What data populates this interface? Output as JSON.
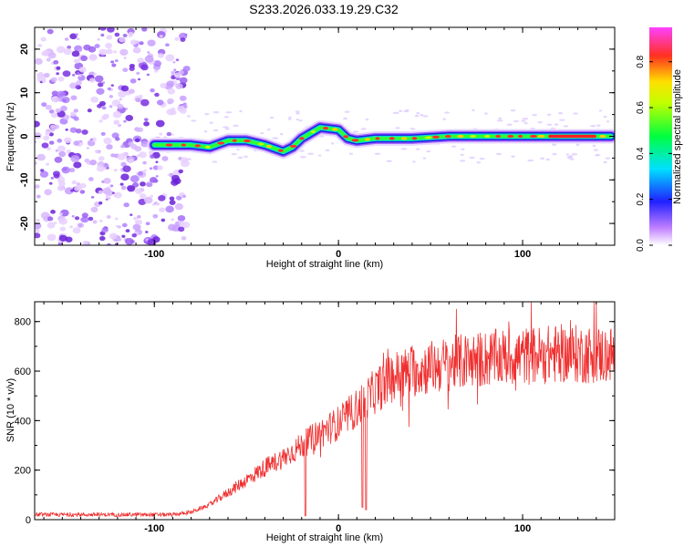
{
  "page": {
    "title": "S233.2026.033.19.29.C32"
  },
  "chart_data": [
    {
      "type": "heatmap",
      "name": "spectrogram",
      "xlabel": "Height of straight line (km)",
      "ylabel": "Frequency (Hz)",
      "xlim": [
        -165,
        150
      ],
      "ylim": [
        -25,
        25
      ],
      "xticks": [
        "-100",
        "0",
        "100"
      ],
      "yticks": [
        "-20",
        "-10",
        "0",
        "10",
        "20"
      ],
      "colorbar": {
        "label": "Normalized spectral amplitude",
        "range": [
          0,
          0.95
        ],
        "ticks": [
          "0.0",
          "0.2",
          "0.4",
          "0.6",
          "0.8"
        ]
      },
      "ridge": {
        "x": [
          -100,
          -90,
          -80,
          -70,
          -60,
          -50,
          -40,
          -30,
          -25,
          -20,
          -10,
          0,
          5,
          10,
          20,
          40,
          60,
          80,
          100,
          120,
          148
        ],
        "y": [
          -2,
          -2,
          -2,
          -2.5,
          -1,
          -1,
          -2,
          -3.5,
          -2.5,
          -0.5,
          2,
          1.5,
          -0.5,
          -1,
          -0.5,
          -0.5,
          0,
          0,
          0,
          0,
          0
        ]
      }
    },
    {
      "type": "line",
      "name": "snr",
      "xlabel": "Height of straight line (km)",
      "ylabel": "SNR (10 * v/v)",
      "xlim": [
        -165,
        150
      ],
      "ylim": [
        0,
        880
      ],
      "xticks": [
        "-100",
        "0",
        "100"
      ],
      "yticks": [
        "0",
        "200",
        "400",
        "600",
        "800"
      ],
      "color": "#f03030",
      "series": [
        {
          "name": "SNR",
          "trend_x": [
            -165,
            -90,
            -80,
            -70,
            -60,
            -50,
            -40,
            -30,
            -20,
            -10,
            0,
            10,
            20,
            30,
            40,
            60,
            80,
            100,
            120,
            150
          ],
          "trend_y": [
            20,
            20,
            30,
            60,
            110,
            160,
            210,
            250,
            300,
            350,
            390,
            450,
            520,
            580,
            600,
            630,
            650,
            660,
            670,
            665
          ],
          "spikes": [
            {
              "x": -18,
              "y": 15
            },
            {
              "x": 13,
              "y": 50
            },
            {
              "x": 15,
              "y": 40
            }
          ]
        }
      ]
    }
  ]
}
